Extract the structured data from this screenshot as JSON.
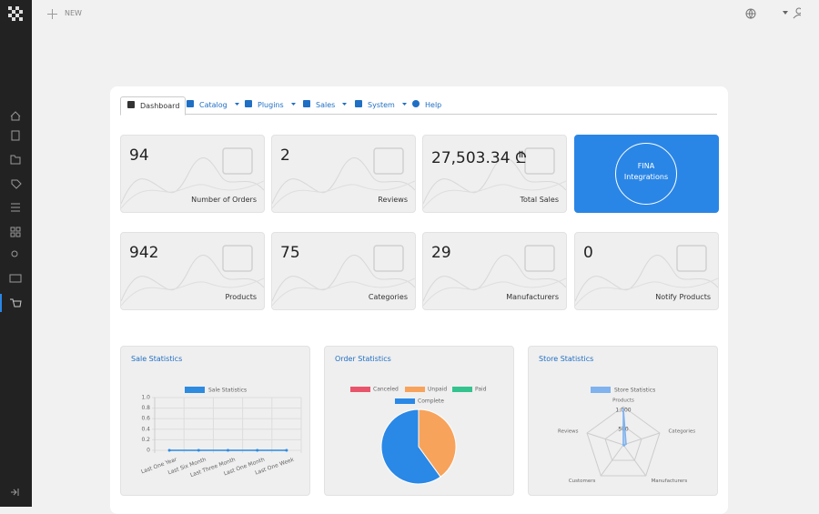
{
  "topbar": {
    "new": "NEW"
  },
  "tabs": [
    "Dashboard",
    "Catalog",
    "Plugins",
    "Sales",
    "System",
    "Help"
  ],
  "stats": [
    {
      "value": "94",
      "label": "Number of Orders"
    },
    {
      "value": "2",
      "label": "Reviews"
    },
    {
      "value": "27,503.34 ₾",
      "label": "Total Sales"
    },
    {
      "value": "FINA Integrations"
    },
    {
      "value": "942",
      "label": "Products"
    },
    {
      "value": "75",
      "label": "Categories"
    },
    {
      "value": "29",
      "label": "Manufacturers"
    },
    {
      "value": "0",
      "label": "Notify Products"
    }
  ],
  "chart_data": [
    {
      "type": "line",
      "title": "Sale Statistics",
      "categories": [
        "Last One Year",
        "Last Six Month",
        "Last Three Month",
        "Last One Month",
        "Last One Week"
      ],
      "series": [
        {
          "name": "Sale Statistics",
          "color": "#2d8be0",
          "values": [
            0,
            0,
            0,
            0,
            0
          ]
        }
      ],
      "ylim": [
        0,
        1
      ],
      "yticks": [
        0,
        0.2,
        0.4,
        0.6,
        0.8,
        {
          "value": 1,
          "label": "1.0"
        }
      ],
      "grid": true
    },
    {
      "type": "pie",
      "title": "Order Statistics",
      "categories": [
        "Canceled",
        "Unpaid",
        "Paid",
        "Complete"
      ],
      "values": [
        0,
        40,
        0,
        60
      ],
      "colors": [
        "#e8546b",
        "#f7a35c",
        "#34c38f",
        "#2a88e6"
      ]
    },
    {
      "type": "radar",
      "title": "Store Statistics",
      "categories": [
        "Products",
        "Categories",
        "Manufacturers",
        "Customers",
        "Reviews"
      ],
      "series": [
        {
          "name": "Store Statistics",
          "color": "#7fb2ee",
          "values": [
            942,
            75,
            29,
            0,
            2
          ]
        }
      ],
      "rlim": [
        0,
        1000
      ],
      "rticks": [
        500,
        {
          "value": 1000,
          "label": "1,000"
        }
      ]
    }
  ]
}
